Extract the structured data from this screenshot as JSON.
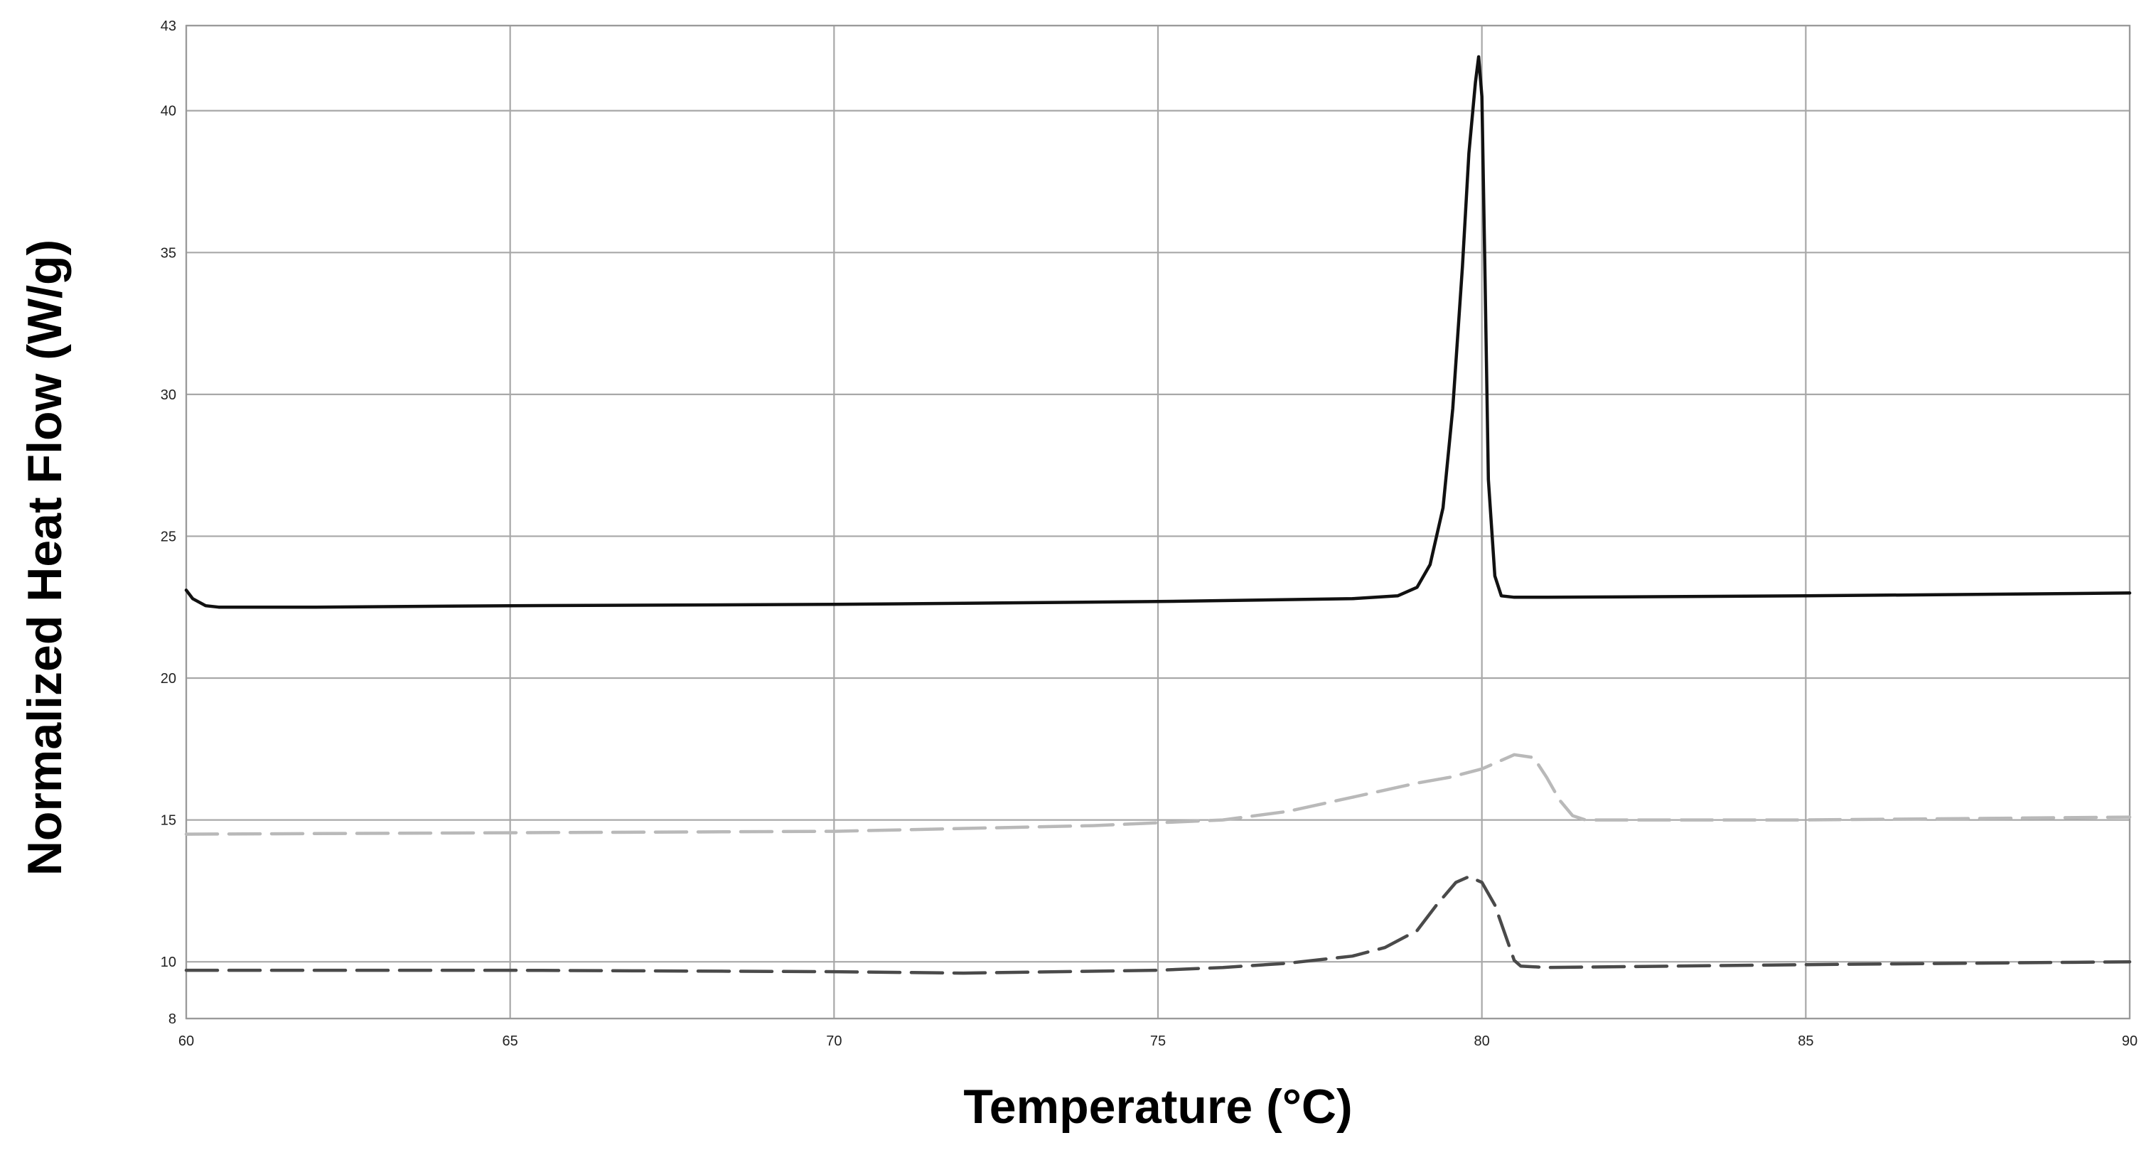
{
  "chart_data": {
    "type": "line",
    "title": "",
    "xlabel": "Temperature (°C)",
    "ylabel": "Normalized Heat Flow (W/g)",
    "xlim": [
      60,
      90
    ],
    "ylim": [
      8,
      43
    ],
    "x_ticks": [
      "60",
      "65",
      "70",
      "75",
      "80",
      "85",
      "90"
    ],
    "y_ticks": [
      "8",
      "10",
      "15",
      "20",
      "25",
      "30",
      "35",
      "40",
      "43"
    ],
    "grid": true,
    "legend": "none",
    "colors": {
      "solid": "#111111",
      "light_dashed": "#b9b9b9",
      "dark_dashed": "#4a4a4a",
      "grid": "#a8a8a8"
    },
    "series": [
      {
        "style": "solid",
        "x": [
          60.0,
          60.1,
          60.3,
          60.5,
          62.0,
          65.0,
          70.0,
          75.0,
          78.0,
          78.7,
          79.0,
          79.2,
          79.4,
          79.55,
          79.7,
          79.8,
          79.9,
          79.95,
          80.0,
          80.05,
          80.1,
          80.2,
          80.3,
          80.5,
          81.0,
          85.0,
          90.0
        ],
        "y": [
          23.1,
          22.8,
          22.55,
          22.5,
          22.5,
          22.55,
          22.6,
          22.7,
          22.8,
          22.9,
          23.2,
          24.0,
          26.0,
          29.5,
          34.5,
          38.5,
          41.0,
          41.9,
          40.5,
          34.0,
          27.0,
          23.6,
          22.9,
          22.85,
          22.85,
          22.9,
          23.0
        ]
      },
      {
        "style": "dashed",
        "x": [
          60.0,
          65.0,
          70.0,
          74.0,
          75.0,
          76.0,
          77.0,
          78.0,
          79.0,
          79.5,
          80.0,
          80.3,
          80.5,
          80.8,
          81.0,
          81.2,
          81.4,
          81.6,
          82.0,
          85.0,
          90.0
        ],
        "y": [
          14.5,
          14.55,
          14.6,
          14.8,
          14.9,
          15.0,
          15.3,
          15.8,
          16.3,
          16.5,
          16.8,
          17.1,
          17.3,
          17.2,
          16.5,
          15.7,
          15.15,
          15.0,
          15.0,
          15.0,
          15.1
        ]
      },
      {
        "style": "dashed",
        "x": [
          60.0,
          65.0,
          70.0,
          72.0,
          75.0,
          76.0,
          77.0,
          78.0,
          78.5,
          79.0,
          79.3,
          79.6,
          79.8,
          80.0,
          80.2,
          80.4,
          80.5,
          80.6,
          81.0,
          85.0,
          90.0
        ],
        "y": [
          9.7,
          9.7,
          9.65,
          9.6,
          9.7,
          9.8,
          9.95,
          10.2,
          10.5,
          11.1,
          12.0,
          12.8,
          13.0,
          12.8,
          12.0,
          10.7,
          10.05,
          9.85,
          9.8,
          9.9,
          10.0
        ]
      }
    ]
  }
}
